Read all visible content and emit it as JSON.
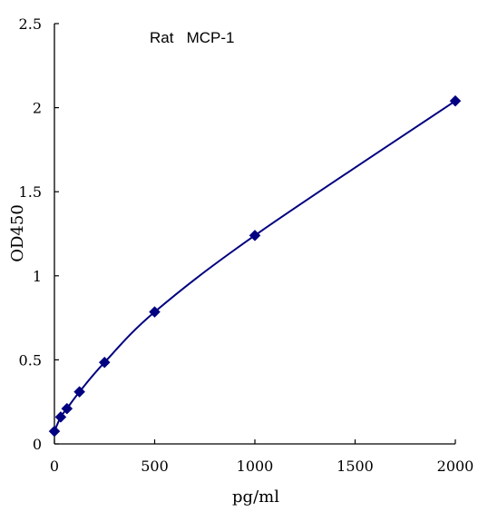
{
  "chart_data": {
    "type": "scatter",
    "title": "Rat   MCP-1",
    "xlabel": "pg/ml",
    "ylabel": "OD450",
    "xlim": [
      0,
      2000
    ],
    "ylim": [
      0,
      2.5
    ],
    "x_ticks": [
      "0",
      "500",
      "1000",
      "1500",
      "2000"
    ],
    "y_ticks": [
      "0",
      "0.5",
      "1",
      "1.5",
      "2",
      "2.5"
    ],
    "grid": false,
    "legend": "none",
    "series": [
      {
        "x": [
          0,
          31.25,
          62.5,
          125,
          250,
          500,
          1000,
          2000
        ],
        "y": [
          0.075,
          0.16,
          0.21,
          0.31,
          0.485,
          0.785,
          1.24,
          2.04
        ],
        "marker": "diamond",
        "fit": "smooth-curve"
      }
    ],
    "colors": {
      "series": "#000080",
      "axis": "#000000"
    }
  }
}
